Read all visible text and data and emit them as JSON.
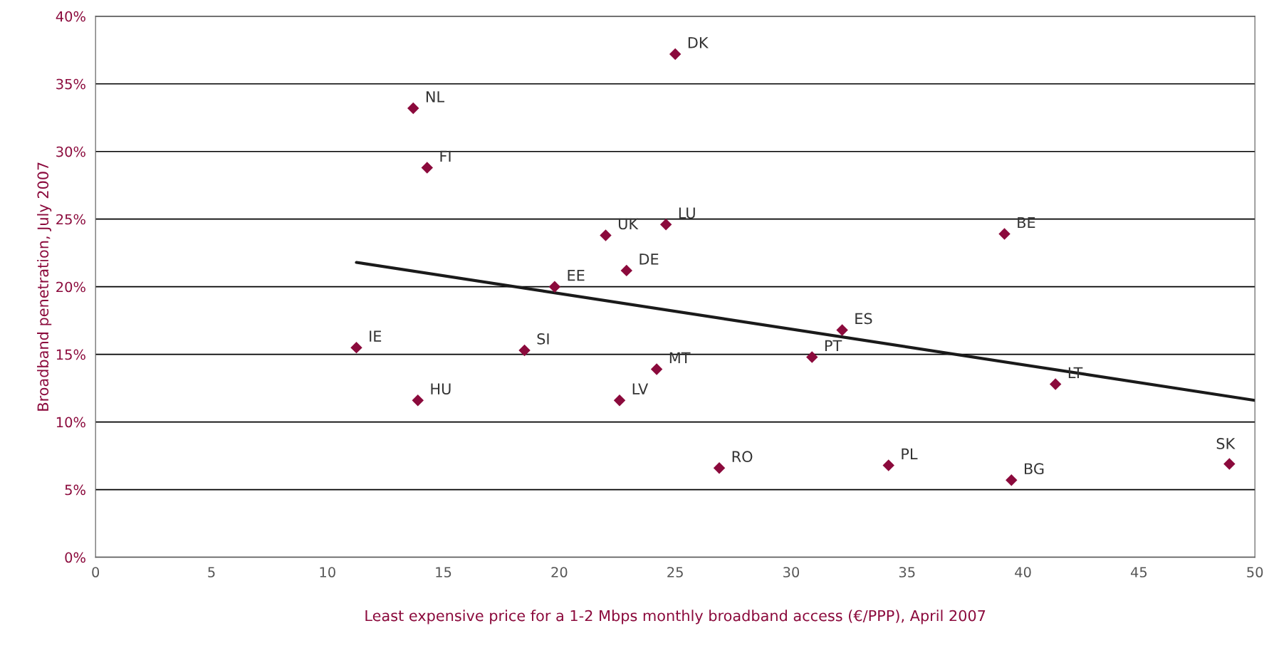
{
  "chart_data": {
    "type": "scatter",
    "xlabel": "Least expensive price for a 1-2 Mbps monthly broadband access (€/PPP), April 2007",
    "ylabel": "Broadband penetration, July 2007",
    "series": [
      {
        "color": "#8b0a3c",
        "marker": "diamond",
        "x": [
          25.0,
          13.7,
          14.3,
          22.0,
          24.6,
          39.2,
          19.8,
          22.9,
          32.2,
          11.25,
          18.5,
          24.2,
          30.9,
          41.4,
          13.9,
          22.6,
          26.9,
          34.2,
          39.5,
          48.9
        ],
        "values": [
          37.2,
          33.2,
          28.8,
          23.8,
          24.6,
          23.9,
          20.0,
          21.2,
          16.8,
          15.5,
          15.3,
          13.9,
          14.8,
          12.8,
          11.6,
          11.6,
          6.6,
          6.8,
          5.7,
          6.9
        ]
      },
      {
        "type": "line",
        "color": "#1a1a1a",
        "marker": "none",
        "line_style": "solid",
        "x": [
          11.25,
          50
        ],
        "values": [
          21.8,
          11.6
        ]
      }
    ],
    "annotations": [
      {
        "text": "DK",
        "x": 25.0,
        "y": 37.2
      },
      {
        "text": "NL",
        "x": 13.7,
        "y": 33.2
      },
      {
        "text": "FI",
        "x": 14.3,
        "y": 28.8
      },
      {
        "text": "UK",
        "x": 22.0,
        "y": 23.8
      },
      {
        "text": "LU",
        "x": 24.6,
        "y": 24.6
      },
      {
        "text": "BE",
        "x": 39.2,
        "y": 23.9
      },
      {
        "text": "EE",
        "x": 19.8,
        "y": 20.0
      },
      {
        "text": "DE",
        "x": 22.9,
        "y": 21.2
      },
      {
        "text": "ES",
        "x": 32.2,
        "y": 16.8
      },
      {
        "text": "IE",
        "x": 11.25,
        "y": 15.5
      },
      {
        "text": "SI",
        "x": 18.5,
        "y": 15.3
      },
      {
        "text": "MT",
        "x": 24.2,
        "y": 13.9
      },
      {
        "text": "PT",
        "x": 30.9,
        "y": 14.8
      },
      {
        "text": "LT",
        "x": 41.4,
        "y": 12.8
      },
      {
        "text": "HU",
        "x": 13.9,
        "y": 11.6
      },
      {
        "text": "LV",
        "x": 22.6,
        "y": 11.6
      },
      {
        "text": "RO",
        "x": 26.9,
        "y": 6.6
      },
      {
        "text": "PL",
        "x": 34.2,
        "y": 6.8
      },
      {
        "text": "BG",
        "x": 39.5,
        "y": 5.7
      },
      {
        "text": "SK",
        "x": 48.9,
        "y": 6.9
      }
    ],
    "xlim": [
      0,
      50
    ],
    "xticks": [
      0,
      5,
      10,
      15,
      20,
      25,
      30,
      35,
      40,
      45,
      50
    ],
    "ylim": [
      0,
      40
    ],
    "yticks": [
      {
        "value": 0,
        "label": "0%"
      },
      {
        "value": 5,
        "label": "5%"
      },
      {
        "value": 10,
        "label": "10%"
      },
      {
        "value": 15,
        "label": "15%"
      },
      {
        "value": 20,
        "label": "20%"
      },
      {
        "value": 25,
        "label": "25%"
      },
      {
        "value": 30,
        "label": "30%"
      },
      {
        "value": 35,
        "label": "35%"
      },
      {
        "value": 40,
        "label": "40%"
      }
    ],
    "grid": "y",
    "legend": false
  }
}
